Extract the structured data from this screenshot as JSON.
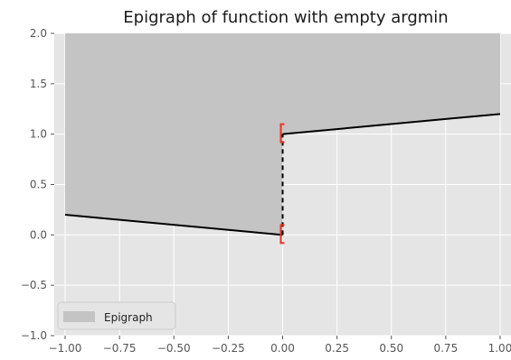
{
  "chart_data": {
    "type": "line",
    "title": "Epigraph of function with empty argmin",
    "xlabel": "",
    "ylabel": "",
    "xlim": [
      -1.05,
      1.05
    ],
    "ylim": [
      -1.0,
      2.0
    ],
    "x_ticks": [
      -1.0,
      -0.75,
      -0.5,
      -0.25,
      0.0,
      0.25,
      0.5,
      0.75,
      1.0
    ],
    "x_tick_labels": [
      "−1.00",
      "−0.75",
      "−0.50",
      "−0.25",
      "0.00",
      "0.25",
      "0.50",
      "0.75",
      "1.00"
    ],
    "y_ticks": [
      -1.0,
      -0.5,
      0.0,
      0.5,
      1.0,
      1.5,
      2.0
    ],
    "y_tick_labels": [
      "−1.0",
      "−0.5",
      "0.0",
      "0.5",
      "1.0",
      "1.5",
      "2.0"
    ],
    "grid": true,
    "legend_position": "lower-left",
    "legend": [
      "Epigraph"
    ],
    "epigraph_upper": 2.0,
    "series": [
      {
        "name": "Epigraph",
        "kind": "area",
        "color": "#c4c4c4",
        "points": [
          [
            -1.0,
            0.2
          ],
          [
            0.0,
            0.0
          ],
          [
            0.0,
            1.0
          ],
          [
            1.0,
            1.2
          ]
        ]
      },
      {
        "kind": "line",
        "color": "#000000",
        "points": [
          [
            -1.0,
            0.2
          ],
          [
            0.0,
            0.0
          ]
        ]
      },
      {
        "kind": "line",
        "color": "#000000",
        "points": [
          [
            0.0,
            1.0
          ],
          [
            1.0,
            1.2
          ]
        ]
      },
      {
        "kind": "dashed-line",
        "color": "#000000",
        "points": [
          [
            0.0,
            0.0
          ],
          [
            0.0,
            1.0
          ]
        ]
      }
    ],
    "open_endpoint_markers": {
      "x": 0.0,
      "y": [
        0.0,
        1.0
      ],
      "color": "#e8332a"
    }
  }
}
